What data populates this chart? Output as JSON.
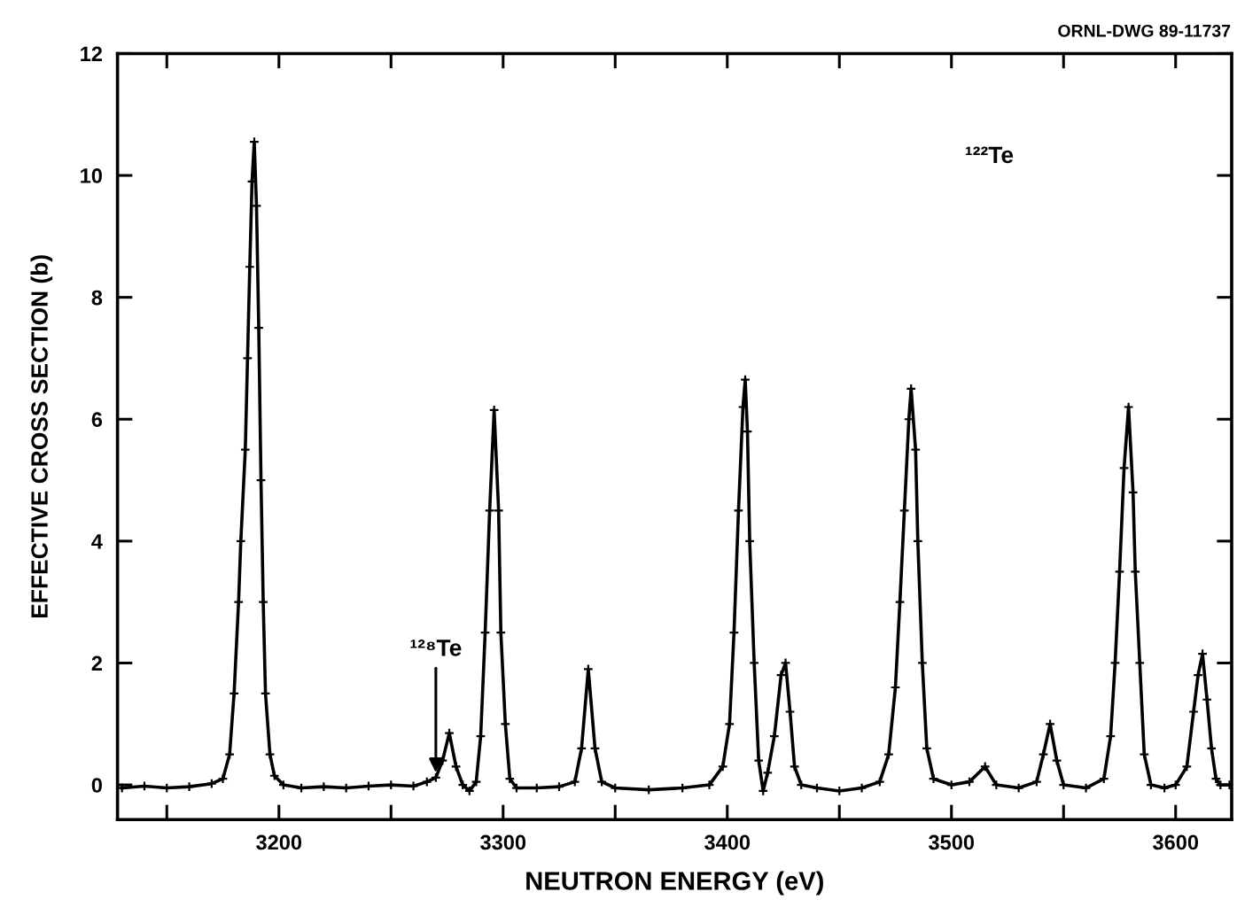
{
  "chart_data": {
    "type": "line",
    "xlabel": "NEUTRON ENERGY (eV)",
    "ylabel": "EFFECTIVE CROSS SECTION (b)",
    "x": [
      3130,
      3140,
      3150,
      3160,
      3170,
      3175,
      3178,
      3180,
      3182,
      3183,
      3185,
      3186,
      3187,
      3188,
      3189,
      3190,
      3191,
      3192,
      3193,
      3194,
      3196,
      3198,
      3202,
      3210,
      3220,
      3230,
      3240,
      3250,
      3260,
      3266,
      3270,
      3273,
      3276,
      3279,
      3282,
      3285,
      3288,
      3290,
      3292,
      3294,
      3296,
      3298,
      3299,
      3301,
      3303,
      3306,
      3315,
      3325,
      3332,
      3335,
      3338,
      3341,
      3344,
      3350,
      3365,
      3380,
      3392,
      3398,
      3401,
      3403,
      3405,
      3407,
      3408,
      3409,
      3410,
      3412,
      3414,
      3416,
      3418,
      3421,
      3424,
      3426,
      3428,
      3430,
      3433,
      3440,
      3450,
      3460,
      3468,
      3472,
      3475,
      3477,
      3479,
      3481,
      3482,
      3484,
      3485,
      3487,
      3489,
      3492,
      3500,
      3508,
      3515,
      3520,
      3530,
      3538,
      3541,
      3544,
      3547,
      3550,
      3560,
      3568,
      3571,
      3573,
      3575,
      3577,
      3579,
      3581,
      3582,
      3584,
      3586,
      3589,
      3595,
      3600,
      3605,
      3608,
      3610,
      3612,
      3614,
      3616,
      3618,
      3620,
      3624
    ],
    "series": [
      {
        "color": "#000000",
        "values": [
          -0.05,
          -0.02,
          -0.05,
          -0.03,
          0.02,
          0.1,
          0.5,
          1.5,
          3.0,
          4.0,
          5.5,
          7.0,
          8.5,
          9.9,
          10.55,
          9.5,
          7.5,
          5.0,
          3.0,
          1.5,
          0.5,
          0.15,
          0.0,
          -0.05,
          -0.03,
          -0.05,
          -0.02,
          0.0,
          -0.02,
          0.05,
          0.12,
          0.4,
          0.85,
          0.3,
          0.0,
          -0.1,
          0.05,
          0.8,
          2.5,
          4.5,
          6.15,
          4.5,
          2.5,
          1.0,
          0.1,
          -0.05,
          -0.05,
          -0.03,
          0.05,
          0.6,
          1.9,
          0.6,
          0.05,
          -0.05,
          -0.08,
          -0.05,
          0.0,
          0.3,
          1.0,
          2.5,
          4.5,
          6.2,
          6.65,
          5.8,
          4.0,
          2.0,
          0.4,
          -0.1,
          0.2,
          0.8,
          1.8,
          2.0,
          1.2,
          0.3,
          0.0,
          -0.05,
          -0.1,
          -0.05,
          0.05,
          0.5,
          1.6,
          3.0,
          4.5,
          6.0,
          6.5,
          5.5,
          4.0,
          2.0,
          0.6,
          0.1,
          0.0,
          0.05,
          0.3,
          0.0,
          -0.05,
          0.05,
          0.5,
          1.0,
          0.4,
          0.0,
          -0.05,
          0.1,
          0.8,
          2.0,
          3.5,
          5.2,
          6.2,
          4.8,
          3.5,
          2.0,
          0.5,
          0.0,
          -0.05,
          0.0,
          0.3,
          1.2,
          1.8,
          2.15,
          1.4,
          0.6,
          0.1,
          0.0,
          0.0
        ]
      }
    ],
    "xlim": [
      3128,
      3625
    ],
    "xticks": [
      {
        "value": 3150,
        "label": null
      },
      3200,
      {
        "value": 3250,
        "label": null
      },
      3300,
      {
        "value": 3350,
        "label": null
      },
      3400,
      {
        "value": 3450,
        "label": null
      },
      3500,
      {
        "value": 3550,
        "label": null
      },
      3600
    ],
    "ylim": [
      -0.57,
      12
    ],
    "yticks": [
      0,
      2,
      4,
      6,
      8,
      10,
      12
    ],
    "marker": "cross",
    "line_style": "solid",
    "grid": false,
    "annotations": [
      "ORNL-DWG 89-11737",
      "¹²²Te",
      {
        "text": "¹²⁸Te",
        "x": 3270,
        "y": 0.12
      }
    ]
  }
}
